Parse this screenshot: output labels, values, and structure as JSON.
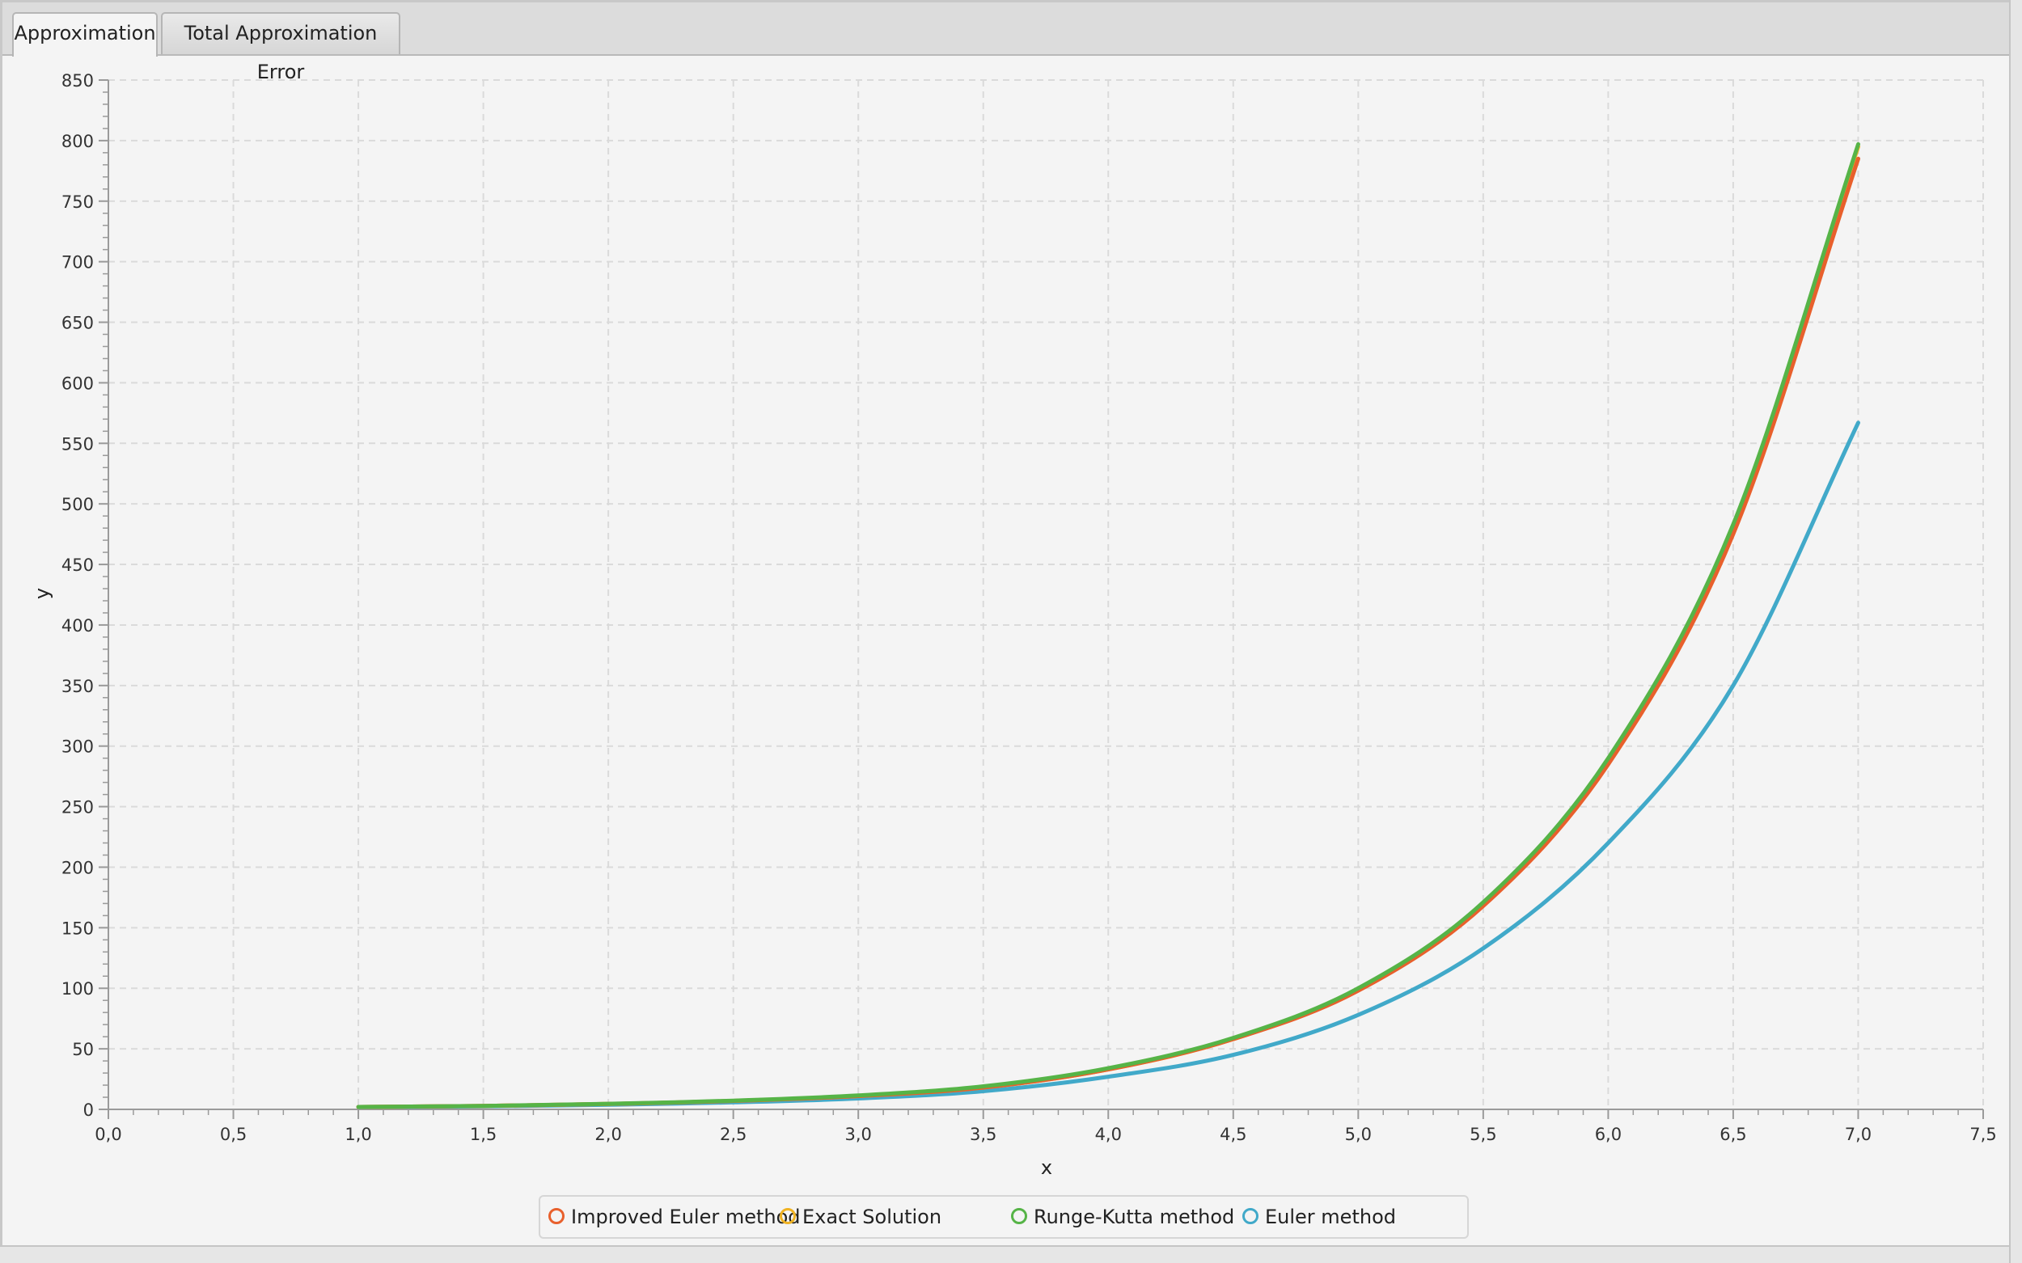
{
  "tabs": [
    {
      "label": "Approximation",
      "active": true
    },
    {
      "label": "Total Approximation Error",
      "active": false
    }
  ],
  "chart_data": {
    "type": "line",
    "title": "",
    "xlabel": "x",
    "ylabel": "y",
    "xlim": [
      0.0,
      7.5
    ],
    "ylim": [
      0,
      850
    ],
    "x_ticks": [
      "0,0",
      "0,5",
      "1,0",
      "1,5",
      "2,0",
      "2,5",
      "3,0",
      "3,5",
      "4,0",
      "4,5",
      "5,0",
      "5,5",
      "6,0",
      "6,5",
      "7,0",
      "7,5"
    ],
    "y_ticks": [
      "0",
      "50",
      "100",
      "150",
      "200",
      "250",
      "300",
      "350",
      "400",
      "450",
      "500",
      "550",
      "600",
      "650",
      "700",
      "750",
      "800",
      "850"
    ],
    "grid": true,
    "legend_position": "bottom",
    "x": [
      1.0,
      1.5,
      2.0,
      2.5,
      3.0,
      3.5,
      4.0,
      4.5,
      5.0,
      5.5,
      6.0,
      6.5,
      7.0
    ],
    "series": [
      {
        "name": "Improved Euler method",
        "color": "#e8602c",
        "values": [
          2,
          2.8,
          4.5,
          7,
          11,
          18,
          33,
          58,
          98,
          168,
          285,
          475,
          785
        ]
      },
      {
        "name": "Exact Solution",
        "color": "#f0b323",
        "values": [
          2,
          2.8,
          4.5,
          7,
          11,
          18,
          33,
          58,
          99,
          170,
          288,
          480,
          795
        ]
      },
      {
        "name": "Runge-Kutta method",
        "color": "#56b447",
        "values": [
          2,
          2.8,
          4.6,
          7.2,
          11.5,
          19,
          34,
          59,
          100,
          171,
          290,
          483,
          797
        ]
      },
      {
        "name": "Euler method",
        "color": "#41a9c9",
        "values": [
          2,
          2.5,
          3.8,
          5.8,
          9,
          15,
          27,
          45,
          78,
          133,
          220,
          350,
          567
        ]
      }
    ]
  }
}
